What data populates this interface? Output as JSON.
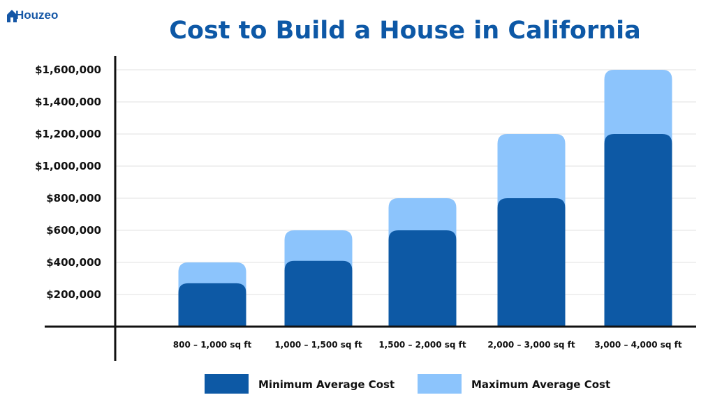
{
  "logo": "Houzeo",
  "chart_data": {
    "type": "bar",
    "stacking": "overlay",
    "title": "Cost to Build a House in California",
    "categories": [
      "800 – 1,000 sq ft",
      "1,000 – 1,500 sq ft",
      "1,500 – 2,000 sq ft",
      "2,000 – 3,000 sq ft",
      "3,000 – 4,000 sq ft"
    ],
    "series": [
      {
        "name": "Minimum Average Cost",
        "color": "#0d59a5",
        "values": [
          270000,
          410000,
          600000,
          800000,
          1200000
        ]
      },
      {
        "name": "Maximum Average Cost",
        "color": "#8cc4fc",
        "values": [
          400000,
          600000,
          800000,
          1200000,
          1600000
        ]
      }
    ],
    "yticks": [
      "$200,000",
      "$400,000",
      "$600,000",
      "$800,000",
      "$1,000,000",
      "$1,200,000",
      "$1,400,000",
      "$1,600,000"
    ],
    "ylim": [
      0,
      1600000
    ],
    "grid": true,
    "legend": "bottom"
  }
}
